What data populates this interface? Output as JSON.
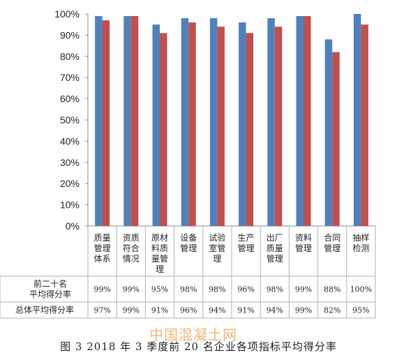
{
  "chart_data": {
    "type": "bar",
    "categories": [
      "质量管理体系",
      "资质符合情况",
      "原材料质量管理",
      "设备管理",
      "试验室管理",
      "生产管理",
      "出厂质量管理",
      "资料管理",
      "合同管理",
      "抽样检测"
    ],
    "category_lines": [
      [
        "质量",
        "管理",
        "体系"
      ],
      [
        "资质",
        "符合",
        "情况"
      ],
      [
        "原材",
        "料质",
        "量管",
        "理"
      ],
      [
        "设备",
        "管理"
      ],
      [
        "试验",
        "室管",
        "理"
      ],
      [
        "生产",
        "管理"
      ],
      [
        "出厂",
        "质量",
        "管理"
      ],
      [
        "资料",
        "管理"
      ],
      [
        "合同",
        "管理"
      ],
      [
        "抽样",
        "检测"
      ]
    ],
    "series": [
      {
        "name": "前二十名平均得分率",
        "name_lines": [
          "前二十名",
          "平均得分率"
        ],
        "color": "#4f81bd",
        "values": [
          99,
          99,
          95,
          98,
          98,
          96,
          98,
          99,
          88,
          100
        ],
        "labels": [
          "99%",
          "99%",
          "95%",
          "98%",
          "98%",
          "96%",
          "98%",
          "99%",
          "88%",
          "100%"
        ]
      },
      {
        "name": "总体平均得分率",
        "name_lines": [
          "总体平均得分率"
        ],
        "color": "#c0504d",
        "values": [
          97,
          99,
          91,
          96,
          94,
          91,
          94,
          99,
          82,
          95
        ],
        "labels": [
          "97%",
          "99%",
          "91%",
          "96%",
          "94%",
          "91%",
          "94%",
          "99%",
          "82%",
          "95%"
        ]
      }
    ],
    "ylim": [
      0,
      100
    ],
    "yticks": [
      "0%",
      "10%",
      "20%",
      "30%",
      "40%",
      "50%",
      "60%",
      "70%",
      "80%",
      "90%",
      "100%"
    ],
    "grid": false,
    "legend": "data-table"
  },
  "watermark": "中国混凝土网",
  "caption": "图 3 2018 年 3 季度前 20 名企业各项指标平均得分率"
}
